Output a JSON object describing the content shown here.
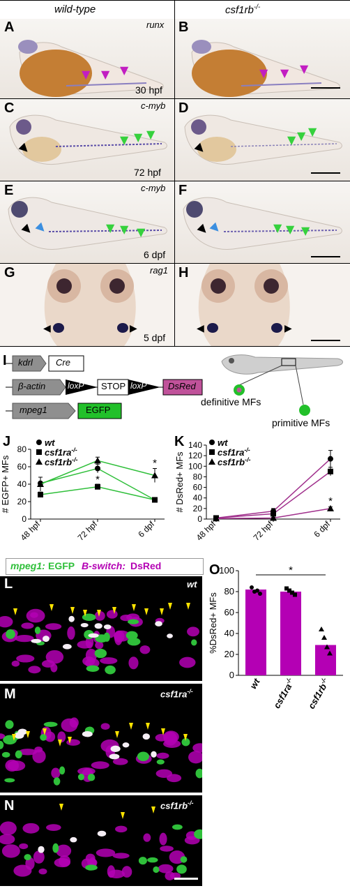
{
  "header": {
    "col_left": "wild-type",
    "col_right": "csf1rb",
    "col_right_sup": "-/-"
  },
  "panels": {
    "A": {
      "label": "A",
      "gene": "runx",
      "stage": "30 hpf"
    },
    "B": {
      "label": "B"
    },
    "C": {
      "label": "C",
      "gene": "c-myb",
      "stage": "72 hpf"
    },
    "D": {
      "label": "D"
    },
    "E": {
      "label": "E",
      "gene": "c-myb",
      "stage": "6 dpf"
    },
    "F": {
      "label": "F"
    },
    "G": {
      "label": "G",
      "gene": "rag1",
      "stage": "5 dpf"
    },
    "H": {
      "label": "H"
    },
    "I": {
      "label": "I"
    },
    "J": {
      "label": "J"
    },
    "K": {
      "label": "K"
    },
    "L": {
      "label": "L",
      "genotype": "wt"
    },
    "M": {
      "label": "M",
      "genotype": "csf1ra",
      "genotype_sup": "-/-"
    },
    "N": {
      "label": "N",
      "genotype": "csf1rb",
      "genotype_sup": "-/-"
    },
    "O": {
      "label": "O"
    }
  },
  "schematic": {
    "kdrl": "kdrl",
    "cre": "Cre",
    "bactin": "β-actin",
    "loxp1": "loxP",
    "stop": "STOP",
    "loxp2": "loxP",
    "dsred": "DsRed",
    "mpeg1": "mpeg1",
    "egfp": "EGFP",
    "definitive": "definitive MFs",
    "primitive": "primitive MFs"
  },
  "fluor_legend": {
    "part1": "mpeg1:",
    "part2": "EGFP ",
    "part3": "B-switch:",
    "part4": "DsRed"
  },
  "colors": {
    "magenta": "#b400b4",
    "green": "#2fbf3a",
    "pink_line": "#a0308c",
    "dsred_box": "#c0529a",
    "egfp_box": "#22c02a",
    "arrow_magenta": "#c21ec2",
    "arrow_green": "#36d13d",
    "yellow": "#ffe400"
  },
  "chart_data": [
    {
      "type": "line",
      "panel": "J",
      "ylabel": "# EGFP+ MFs",
      "categories": [
        "48 hpf",
        "72 hpf",
        "6 dpf"
      ],
      "ylim": [
        0,
        80
      ],
      "yticks": [
        0,
        20,
        40,
        60,
        80
      ],
      "series": [
        {
          "name": "wt",
          "marker": "circle",
          "values": [
            41,
            58,
            22
          ],
          "err": [
            7,
            5,
            2
          ]
        },
        {
          "name": "csf1ra-/-",
          "marker": "square",
          "values": [
            28,
            37,
            22
          ],
          "err": [
            3,
            3,
            2
          ]
        },
        {
          "name": "csf1rb-/-",
          "marker": "triangle",
          "values": [
            40,
            67,
            50
          ],
          "err": [
            8,
            4,
            8
          ]
        }
      ],
      "annotations": [
        {
          "x": "72 hpf",
          "text": "*"
        },
        {
          "x": "6 dpf",
          "text": "*"
        }
      ],
      "legend": [
        {
          "sym": "●",
          "name": "wt"
        },
        {
          "sym": "■",
          "name": "csf1ra",
          "sup": "-/-"
        },
        {
          "sym": "▲",
          "name": "csf1rb",
          "sup": "-/-"
        }
      ]
    },
    {
      "type": "line",
      "panel": "K",
      "ylabel": "# DsRed+ MFs",
      "categories": [
        "48 hpf",
        "72 hpf",
        "6 dpf"
      ],
      "ylim": [
        0,
        140
      ],
      "yticks": [
        0,
        20,
        40,
        60,
        80,
        100,
        120,
        140
      ],
      "series": [
        {
          "name": "wt",
          "marker": "circle",
          "values": [
            2,
            15,
            114
          ],
          "err": [
            1,
            5,
            16
          ]
        },
        {
          "name": "csf1ra-/-",
          "marker": "square",
          "values": [
            2,
            10,
            90
          ],
          "err": [
            1,
            4,
            8
          ]
        },
        {
          "name": "csf1rb-/-",
          "marker": "triangle",
          "values": [
            1,
            2,
            20
          ],
          "err": [
            1,
            1,
            3
          ]
        }
      ],
      "annotations": [
        {
          "x": "6 dpf",
          "text": "*"
        }
      ],
      "legend": [
        {
          "sym": "●",
          "name": "wt"
        },
        {
          "sym": "■",
          "name": "csf1ra",
          "sup": "-/-"
        },
        {
          "sym": "▲",
          "name": "csf1rb",
          "sup": "-/-"
        }
      ]
    },
    {
      "type": "bar",
      "panel": "O",
      "ylabel": "%DsRed+ MFs",
      "categories": [
        "wt",
        "csf1ra-/-",
        "csf1rb-/-"
      ],
      "values": [
        82,
        80,
        29
      ],
      "ylim": [
        0,
        100
      ],
      "yticks": [
        0,
        20,
        40,
        60,
        80,
        100
      ],
      "points": [
        [
          84,
          80,
          81,
          78
        ],
        [
          83,
          81,
          79,
          77
        ],
        [
          44,
          36,
          27,
          21
        ]
      ],
      "point_markers": [
        "circle",
        "square",
        "triangle"
      ],
      "annotations": [
        {
          "text": "*"
        }
      ],
      "xlabels": [
        {
          "name": "wt"
        },
        {
          "name": "csf1ra",
          "sup": "-/-"
        },
        {
          "name": "csf1rb",
          "sup": "-/-"
        }
      ]
    }
  ]
}
